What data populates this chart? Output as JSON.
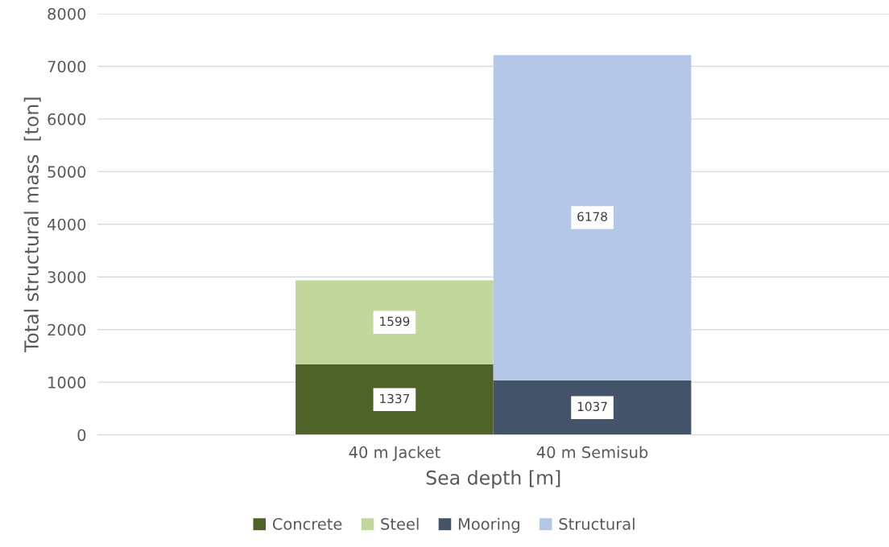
{
  "chart_data": {
    "type": "bar",
    "stacked": true,
    "xlabel": "Sea depth [m]",
    "ylabel": "Total structural mass  [ton]",
    "categories": [
      "40 m Jacket",
      "40 m Semisub"
    ],
    "series": [
      {
        "name": "Concrete",
        "color": "#4f6228",
        "values": [
          1337,
          null
        ]
      },
      {
        "name": "Steel",
        "color": "#c3d69b",
        "values": [
          1599,
          null
        ]
      },
      {
        "name": "Mooring",
        "color": "#44546a",
        "values": [
          null,
          1037
        ]
      },
      {
        "name": "Structural",
        "color": "#b4c7e7",
        "values": [
          null,
          6178
        ]
      }
    ],
    "ylim": [
      0,
      8000
    ],
    "yticks": [
      0,
      1000,
      2000,
      3000,
      4000,
      5000,
      6000,
      7000,
      8000
    ],
    "grid": "y",
    "legend": "bottom",
    "data_labels": true
  }
}
